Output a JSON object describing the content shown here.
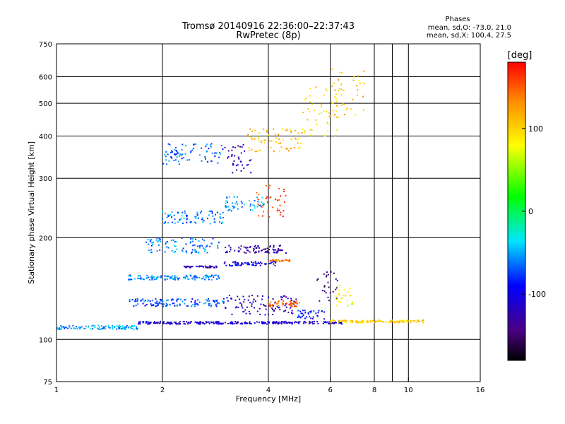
{
  "chart_data": {
    "type": "scatter",
    "title": "Tromsø 20140916 22:36:00–22:37:43",
    "subtitle": "RwPretec (8p)",
    "xlabel": "Frequency [MHz]",
    "ylabel": "Stationary phase Virtual Height [km]",
    "x_scale": "log",
    "y_scale": "log",
    "xlim": [
      1,
      16
    ],
    "ylim": [
      75,
      750
    ],
    "x_ticks": [
      1,
      2,
      4,
      6,
      8,
      10,
      16
    ],
    "x_tick_labels": [
      "1",
      "2",
      "4",
      "6",
      "8",
      "10",
      "16"
    ],
    "x_minor_ticks": [
      9
    ],
    "y_ticks": [
      75,
      100,
      200,
      300,
      400,
      500,
      600,
      750
    ],
    "y_tick_labels": [
      "75",
      "100",
      "200",
      "300",
      "400",
      "500",
      "600",
      "750"
    ],
    "grid": true,
    "annotation": {
      "heading": "Phases",
      "lines": [
        "mean, sd,O: -73.0, 21.0",
        "mean, sd,X: 100.4, 27.5"
      ]
    },
    "colorbar": {
      "label": "[deg]",
      "ticks": [
        100,
        0,
        -100
      ],
      "tick_labels": [
        "100",
        "0",
        "-100"
      ],
      "range": [
        -180,
        180
      ]
    },
    "traces": [
      {
        "f": [
          1.0,
          1.7
        ],
        "h": [
          107,
          110
        ],
        "phase": -50
      },
      {
        "f": [
          1.7,
          6.5
        ],
        "h": [
          111,
          113
        ],
        "phase": -110
      },
      {
        "f": [
          6.0,
          11.2
        ],
        "h": [
          112,
          114
        ],
        "phase": 100
      },
      {
        "f": [
          1.6,
          2.9
        ],
        "h": [
          150,
          155
        ],
        "phase": -60
      },
      {
        "f": [
          2.3,
          2.9
        ],
        "h": [
          163,
          165
        ],
        "phase": -130
      },
      {
        "f": [
          3.0,
          4.2
        ],
        "h": [
          165,
          170
        ],
        "phase": -100
      },
      {
        "f": [
          4.0,
          4.6
        ],
        "h": [
          170,
          172
        ],
        "phase": 140
      },
      {
        "f": [
          1.6,
          3.0
        ],
        "h": [
          125,
          132
        ],
        "phase": -70
      },
      {
        "f": [
          3.0,
          4.8
        ],
        "h": [
          118,
          135
        ],
        "phase": -115
      },
      {
        "f": [
          4.0,
          4.9
        ],
        "h": [
          125,
          130
        ],
        "phase": 150
      },
      {
        "f": [
          4.8,
          5.8
        ],
        "h": [
          115,
          122
        ],
        "phase": -90
      },
      {
        "f": [
          5.5,
          6.3
        ],
        "h": [
          130,
          160
        ],
        "phase": -140
      },
      {
        "f": [
          6.2,
          7.0
        ],
        "h": [
          125,
          145
        ],
        "phase": 80
      },
      {
        "f": [
          2.0,
          3.0
        ],
        "h": [
          220,
          240
        ],
        "phase": -60
      },
      {
        "f": [
          3.0,
          3.9
        ],
        "h": [
          240,
          265
        ],
        "phase": -50
      },
      {
        "f": [
          3.7,
          4.5
        ],
        "h": [
          230,
          290
        ],
        "phase": 160
      },
      {
        "f": [
          3.0,
          4.5
        ],
        "h": [
          180,
          190
        ],
        "phase": -130
      },
      {
        "f": [
          1.8,
          2.9
        ],
        "h": [
          180,
          200
        ],
        "phase": -60
      },
      {
        "f": [
          2.0,
          3.0
        ],
        "h": [
          330,
          380
        ],
        "phase": -70
      },
      {
        "f": [
          3.0,
          3.6
        ],
        "h": [
          310,
          380
        ],
        "phase": -125
      },
      {
        "f": [
          3.5,
          5.0
        ],
        "h": [
          360,
          420
        ],
        "phase": 110
      },
      {
        "f": [
          5.0,
          6.3
        ],
        "h": [
          400,
          560
        ],
        "phase": 90
      },
      {
        "f": [
          6.0,
          7.5
        ],
        "h": [
          450,
          640
        ],
        "phase": 110
      }
    ]
  }
}
